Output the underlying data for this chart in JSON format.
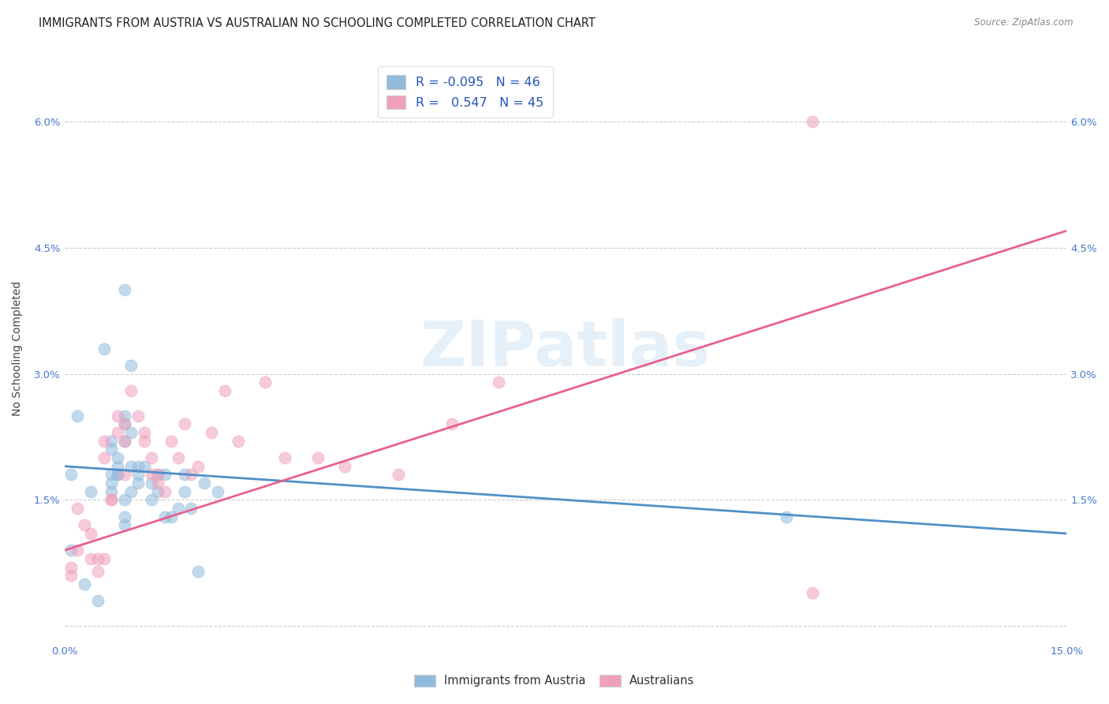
{
  "title": "IMMIGRANTS FROM AUSTRIA VS AUSTRALIAN NO SCHOOLING COMPLETED CORRELATION CHART",
  "source": "Source: ZipAtlas.com",
  "ylabel": "No Schooling Completed",
  "xlim": [
    0.0,
    0.15
  ],
  "ylim": [
    -0.002,
    0.068
  ],
  "plot_ylim": [
    -0.002,
    0.068
  ],
  "xticks": [
    0.0,
    0.03,
    0.06,
    0.09,
    0.12,
    0.15
  ],
  "yticks": [
    0.0,
    0.015,
    0.03,
    0.045,
    0.06
  ],
  "ytick_labels": [
    "",
    "1.5%",
    "3.0%",
    "4.5%",
    "6.0%"
  ],
  "xtick_labels": [
    "0.0%",
    "",
    "",
    "",
    "",
    "15.0%"
  ],
  "legend_entries": [
    {
      "label": "Immigrants from Austria",
      "R": "-0.095",
      "N": "46",
      "color": "#a8c8e8"
    },
    {
      "label": "Australians",
      "R": " 0.547",
      "N": "45",
      "color": "#f4a8c0"
    }
  ],
  "blue_scatter_x": [
    0.001,
    0.001,
    0.002,
    0.003,
    0.004,
    0.005,
    0.006,
    0.007,
    0.007,
    0.007,
    0.007,
    0.007,
    0.008,
    0.008,
    0.008,
    0.008,
    0.009,
    0.009,
    0.009,
    0.009,
    0.009,
    0.009,
    0.009,
    0.01,
    0.01,
    0.01,
    0.01,
    0.011,
    0.011,
    0.011,
    0.012,
    0.013,
    0.013,
    0.014,
    0.014,
    0.015,
    0.015,
    0.016,
    0.017,
    0.018,
    0.018,
    0.019,
    0.02,
    0.021,
    0.023,
    0.108
  ],
  "blue_scatter_y": [
    0.018,
    0.009,
    0.025,
    0.005,
    0.016,
    0.003,
    0.033,
    0.022,
    0.021,
    0.018,
    0.017,
    0.016,
    0.02,
    0.019,
    0.018,
    0.018,
    0.04,
    0.025,
    0.024,
    0.022,
    0.015,
    0.013,
    0.012,
    0.031,
    0.023,
    0.019,
    0.016,
    0.019,
    0.018,
    0.017,
    0.019,
    0.017,
    0.015,
    0.018,
    0.016,
    0.018,
    0.013,
    0.013,
    0.014,
    0.018,
    0.016,
    0.014,
    0.0065,
    0.017,
    0.016,
    0.013
  ],
  "pink_scatter_x": [
    0.001,
    0.001,
    0.002,
    0.002,
    0.003,
    0.004,
    0.004,
    0.005,
    0.005,
    0.006,
    0.006,
    0.006,
    0.007,
    0.007,
    0.008,
    0.008,
    0.009,
    0.009,
    0.009,
    0.01,
    0.011,
    0.012,
    0.012,
    0.013,
    0.013,
    0.014,
    0.014,
    0.015,
    0.016,
    0.017,
    0.018,
    0.019,
    0.02,
    0.022,
    0.024,
    0.026,
    0.03,
    0.033,
    0.038,
    0.042,
    0.05,
    0.058,
    0.065,
    0.112,
    0.112
  ],
  "pink_scatter_y": [
    0.007,
    0.006,
    0.014,
    0.009,
    0.012,
    0.011,
    0.008,
    0.008,
    0.0065,
    0.022,
    0.02,
    0.008,
    0.015,
    0.015,
    0.025,
    0.023,
    0.024,
    0.022,
    0.018,
    0.028,
    0.025,
    0.023,
    0.022,
    0.02,
    0.018,
    0.018,
    0.017,
    0.016,
    0.022,
    0.02,
    0.024,
    0.018,
    0.019,
    0.023,
    0.028,
    0.022,
    0.029,
    0.02,
    0.02,
    0.019,
    0.018,
    0.024,
    0.029,
    0.06,
    0.004
  ],
  "blue_line_x": [
    0.0,
    0.15
  ],
  "blue_line_y": [
    0.019,
    0.011
  ],
  "pink_line_x": [
    0.0,
    0.15
  ],
  "pink_line_y": [
    0.009,
    0.047
  ],
  "scatter_alpha": 0.55,
  "scatter_size": 120,
  "blue_color": "#90bbdd",
  "pink_color": "#f0a0bc",
  "blue_line_color": "#5090c8",
  "pink_line_color": "#e86090",
  "watermark": "ZIPatlas",
  "bg_color": "#ffffff",
  "grid_color": "#cccccc",
  "title_fontsize": 10.5,
  "axis_label_fontsize": 10,
  "tick_fontsize": 9.5
}
